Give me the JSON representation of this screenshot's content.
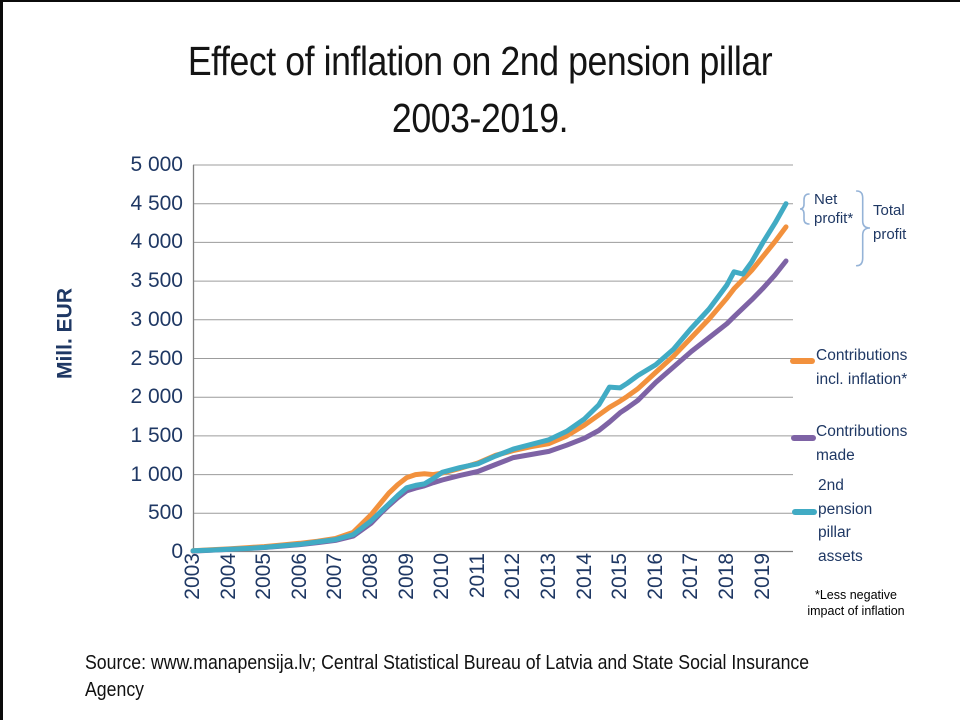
{
  "title": {
    "line1": "Effect of inflation on 2nd pension pillar",
    "line2": "2003-2019."
  },
  "y_axis": {
    "title": "Mill. EUR",
    "tick_labels": [
      "5 000",
      "4 500",
      "4 000",
      "3 500",
      "3 000",
      "2 500",
      "2 000",
      "1 500",
      "1 000",
      "500",
      "0"
    ]
  },
  "x_axis": {
    "tick_labels": [
      "2003",
      "2004",
      "2005",
      "2006",
      "2007",
      "2008",
      "2009",
      "2010",
      "2011",
      "2012",
      "2013",
      "2014",
      "2015",
      "2016",
      "2017",
      "2018",
      "2019"
    ]
  },
  "annotations": {
    "net_profit": {
      "lines": [
        "Net",
        "profit*"
      ]
    },
    "total_profit": {
      "lines": [
        "Total",
        "profit"
      ]
    }
  },
  "legend": [
    {
      "label": "Contributions incl. inflation*",
      "lines": [
        "Contributions",
        "incl. inflation*"
      ],
      "color": "#F2913D"
    },
    {
      "label": "Contributions made",
      "lines": [
        "Contributions",
        "made"
      ],
      "color": "#7E63A5"
    },
    {
      "label": "2nd pension pillar assets",
      "lines": [
        "2nd",
        "pension",
        "pillar",
        "assets"
      ],
      "color": "#41ABC4"
    }
  ],
  "footnote": {
    "lines": [
      "*Less negative",
      "impact of inflation"
    ]
  },
  "source": {
    "lines": [
      "Source: www.manapensija.lv; Central Statistical Bureau of Latvia and State Social Insurance",
      "Agency"
    ]
  },
  "colors": {
    "text_navy": "#1F3864",
    "grid": "#9C9C9C",
    "axis": "#808080",
    "brace": "#95B3D7",
    "orange": "#F2913D",
    "purple": "#7E63A5",
    "teal": "#41ABC4",
    "title_text": "#141414"
  },
  "chart_data": {
    "type": "line",
    "title": "Effect of inflation on 2nd pension pillar 2003-2019.",
    "xlabel": "",
    "ylabel": "Mill. EUR",
    "ylim": [
      0,
      5000
    ],
    "grid_step": 500,
    "grid": true,
    "legend_position": "right",
    "x_start_year": 2003,
    "x_end_year": 2019.66,
    "x_tick_years": [
      2003,
      2004,
      2005,
      2006,
      2007,
      2008,
      2009,
      2010,
      2011,
      2012,
      2013,
      2014,
      2015,
      2016,
      2017,
      2018,
      2019
    ],
    "x_years": [
      2003,
      2003.5,
      2004,
      2004.5,
      2005,
      2005.5,
      2006,
      2006.5,
      2007,
      2007.5,
      2008,
      2008.25,
      2008.5,
      2008.75,
      2009,
      2009.25,
      2009.5,
      2009.75,
      2010,
      2010.5,
      2011,
      2011.5,
      2012,
      2012.5,
      2013,
      2013.5,
      2014,
      2014.4,
      2014.7,
      2015,
      2015.2,
      2015.5,
      2016,
      2016.5,
      2017,
      2017.5,
      2018,
      2018.2,
      2018.45,
      2018.7,
      2019,
      2019.35,
      2019.66
    ],
    "series": [
      {
        "id": "contributions-made",
        "name": "Contributions made",
        "color": "#7E63A5",
        "values": [
          12,
          22,
          33,
          45,
          58,
          76,
          95,
          120,
          150,
          205,
          370,
          490,
          600,
          700,
          790,
          825,
          855,
          895,
          930,
          990,
          1040,
          1130,
          1220,
          1260,
          1300,
          1380,
          1470,
          1570,
          1680,
          1800,
          1860,
          1960,
          2190,
          2390,
          2590,
          2770,
          2950,
          3040,
          3150,
          3260,
          3400,
          3580,
          3760
        ]
      },
      {
        "id": "contributions-incl-inflation",
        "name": "Contributions incl. inflation*",
        "color": "#F2913D",
        "values": [
          15,
          28,
          40,
          55,
          70,
          90,
          112,
          140,
          175,
          255,
          480,
          620,
          760,
          870,
          960,
          1000,
          1010,
          1000,
          1020,
          1080,
          1150,
          1250,
          1310,
          1360,
          1400,
          1500,
          1640,
          1770,
          1870,
          1950,
          2010,
          2110,
          2320,
          2530,
          2770,
          3010,
          3280,
          3400,
          3520,
          3640,
          3810,
          4010,
          4200
        ]
      },
      {
        "id": "pension-pillar-assets",
        "name": "2nd pension pillar assets",
        "color": "#41ABC4",
        "values": [
          15,
          25,
          35,
          45,
          60,
          80,
          100,
          130,
          160,
          225,
          400,
          510,
          620,
          730,
          830,
          860,
          880,
          950,
          1030,
          1090,
          1140,
          1240,
          1330,
          1390,
          1450,
          1560,
          1720,
          1900,
          2130,
          2120,
          2180,
          2280,
          2420,
          2620,
          2890,
          3140,
          3450,
          3620,
          3590,
          3750,
          3990,
          4250,
          4500
        ]
      }
    ]
  }
}
